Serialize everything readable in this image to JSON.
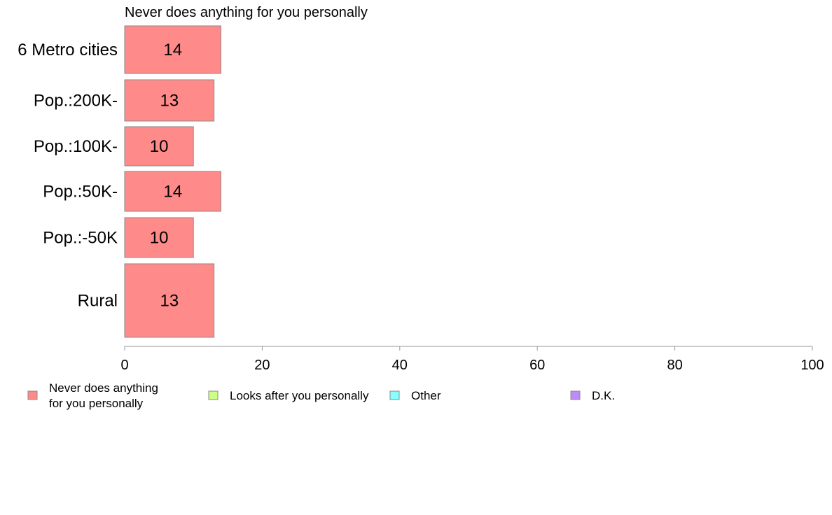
{
  "chart_data": {
    "type": "bar",
    "orientation": "horizontal",
    "title": "Never does anything for you personally",
    "categories": [
      "6 Metro cities",
      "Pop.:200K-",
      "Pop.:100K-",
      "Pop.:50K-",
      "Pop.:-50K",
      "Rural"
    ],
    "series": [
      {
        "name": "Never does anything for you personally",
        "values": [
          14,
          13,
          10,
          14,
          10,
          13
        ]
      }
    ],
    "data_labels": [
      "14",
      "13",
      "10",
      "14",
      "10",
      "13"
    ],
    "xlim": [
      0,
      100
    ],
    "xticks": [
      0,
      20,
      40,
      60,
      80,
      100
    ],
    "xtick_labels": [
      "0",
      "20",
      "40",
      "60",
      "80",
      "100"
    ],
    "bar_color": "#ff8a8a",
    "grid": false,
    "legend": {
      "placement": "bottom",
      "entries": [
        {
          "label_lines": [
            "Never does anything",
            "for you personally"
          ],
          "color": "#ff8a8a"
        },
        {
          "label_lines": [
            "Looks after you personally"
          ],
          "color": "#ccff88"
        },
        {
          "label_lines": [
            "Other"
          ],
          "color": "#88ffff"
        },
        {
          "label_lines": [
            "D.K."
          ],
          "color": "#c08aff"
        }
      ]
    }
  }
}
